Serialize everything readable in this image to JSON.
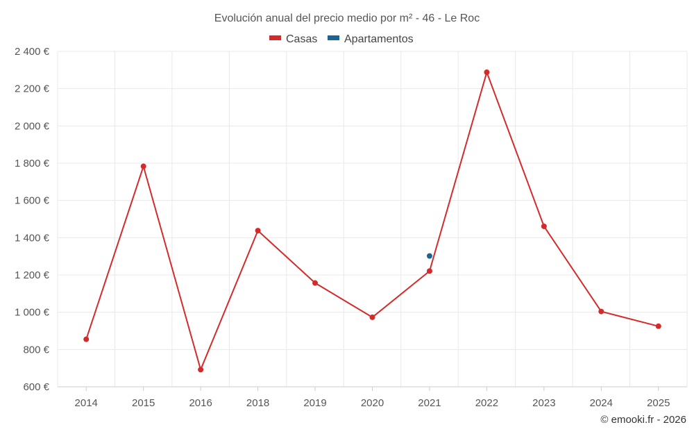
{
  "chart_data": {
    "type": "line",
    "title": "Evolución anual del precio medio por m² - 46 - Le Roc",
    "categories": [
      "2014",
      "2015",
      "2016",
      "2018",
      "2019",
      "2020",
      "2021",
      "2022",
      "2023",
      "2024",
      "2025"
    ],
    "series": [
      {
        "name": "Casas",
        "color": "#d42a2a",
        "values": [
          855,
          1783,
          692,
          1438,
          1157,
          973,
          1221,
          2288,
          1461,
          1004,
          925
        ]
      },
      {
        "name": "Apartamentos",
        "color": "#1a6496",
        "values": [
          null,
          null,
          null,
          null,
          null,
          null,
          1302,
          null,
          null,
          null,
          null
        ]
      }
    ],
    "y_ticks": [
      "600 €",
      "800 €",
      "1 000 €",
      "1 200 €",
      "1 400 €",
      "1 600 €",
      "1 800 €",
      "2 000 €",
      "2 200 €",
      "2 400 €"
    ],
    "ylim": [
      600,
      2400
    ],
    "xlabel": "",
    "ylabel": "",
    "legend_position": "top-center",
    "grid": true
  },
  "credit": "© emooki.fr - 2026"
}
